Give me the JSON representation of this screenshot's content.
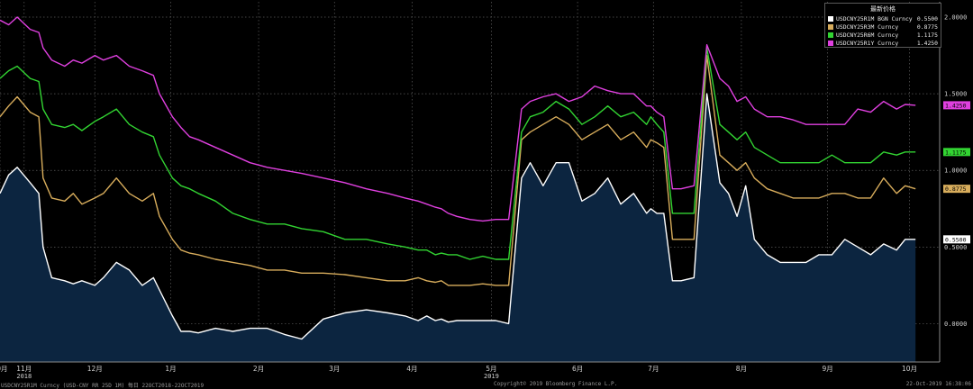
{
  "legend": {
    "title": "最新价格",
    "items": [
      {
        "label": "USDCNY25R1M BGN Curncy",
        "value": "0.5500",
        "color": "#ffffff"
      },
      {
        "label": "USDCNY25R3M Curncy",
        "value": "0.8775",
        "color": "#d8ad5c"
      },
      {
        "label": "USDCNY25R6M Curncy",
        "value": "1.1175",
        "color": "#32d432"
      },
      {
        "label": "USDCNY25R1Y Curncy",
        "value": "1.4250",
        "color": "#e040e0"
      }
    ]
  },
  "footer": {
    "left": "USDCNY25R1M Curncy (USD-CNY RR 25D 1M)  每日 22OCT2018-22OCT2019",
    "center": "Copyright© 2019 Bloomberg Finance L.P.",
    "right": "22-Oct-2019 16:38:06"
  },
  "chart_data": {
    "type": "line",
    "x_axis": {
      "ticks": [
        "10月",
        "11月",
        "12月",
        "1月",
        "2月",
        "3月",
        "4月",
        "5月",
        "6月",
        "7月",
        "8月",
        "9月",
        "10月"
      ],
      "tick_positions": [
        0,
        0.28,
        1.1,
        1.98,
        3.0,
        3.88,
        4.78,
        5.7,
        6.7,
        7.58,
        8.6,
        9.6,
        10.55
      ],
      "year_labels": [
        {
          "label": "2018",
          "at": 0.28
        },
        {
          "label": "2019",
          "at": 5.7
        }
      ],
      "range": [
        0,
        10.9
      ]
    },
    "y_axis": {
      "ticks": [
        "0.0000",
        "0.5000",
        "1.0000",
        "1.5000",
        "2.0000"
      ],
      "tick_values": [
        0,
        0.5,
        1.0,
        1.5,
        2.0
      ],
      "range": [
        -0.25,
        2.1
      ]
    },
    "grid": true,
    "legend_position": "top-right",
    "series": [
      {
        "name": "USDCNY25R1M BGN Curncy",
        "color": "#ffffff",
        "fill": "#0c2540",
        "last_value": "0.5500",
        "x": [
          0,
          0.1,
          0.2,
          0.35,
          0.45,
          0.5,
          0.6,
          0.75,
          0.85,
          0.95,
          1.1,
          1.2,
          1.35,
          1.5,
          1.65,
          1.78,
          1.85,
          2.0,
          2.1,
          2.2,
          2.3,
          2.5,
          2.7,
          2.9,
          3.1,
          3.3,
          3.5,
          3.75,
          4.0,
          4.25,
          4.5,
          4.7,
          4.85,
          4.95,
          5.05,
          5.12,
          5.2,
          5.3,
          5.45,
          5.6,
          5.75,
          5.9,
          6.05,
          6.15,
          6.3,
          6.45,
          6.6,
          6.75,
          6.9,
          7.05,
          7.2,
          7.35,
          7.5,
          7.55,
          7.62,
          7.7,
          7.8,
          7.9,
          8.05,
          8.2,
          8.35,
          8.45,
          8.55,
          8.65,
          8.75,
          8.9,
          9.05,
          9.2,
          9.35,
          9.5,
          9.65,
          9.8,
          9.95,
          10.1,
          10.25,
          10.4,
          10.5,
          10.62
        ],
        "y": [
          0.85,
          0.97,
          1.02,
          0.92,
          0.85,
          0.5,
          0.3,
          0.28,
          0.26,
          0.28,
          0.25,
          0.3,
          0.4,
          0.35,
          0.25,
          0.3,
          0.22,
          0.05,
          -0.05,
          -0.05,
          -0.06,
          -0.03,
          -0.05,
          -0.03,
          -0.03,
          -0.07,
          -0.1,
          0.03,
          0.07,
          0.09,
          0.07,
          0.05,
          0.02,
          0.05,
          0.02,
          0.03,
          0.01,
          0.02,
          0.02,
          0.02,
          0.02,
          0.0,
          0.95,
          1.05,
          0.9,
          1.05,
          1.05,
          0.8,
          0.85,
          0.95,
          0.78,
          0.85,
          0.72,
          0.75,
          0.72,
          0.72,
          0.28,
          0.28,
          0.3,
          1.5,
          0.92,
          0.85,
          0.7,
          0.9,
          0.55,
          0.45,
          0.4,
          0.4,
          0.4,
          0.45,
          0.45,
          0.55,
          0.5,
          0.45,
          0.52,
          0.48,
          0.55,
          0.55
        ]
      },
      {
        "name": "USDCNY25R3M Curncy",
        "color": "#d8ad5c",
        "last_value": "0.8775",
        "x": [
          0,
          0.1,
          0.2,
          0.35,
          0.45,
          0.5,
          0.6,
          0.75,
          0.85,
          0.95,
          1.1,
          1.2,
          1.35,
          1.5,
          1.65,
          1.78,
          1.85,
          2.0,
          2.1,
          2.2,
          2.3,
          2.5,
          2.7,
          2.9,
          3.1,
          3.3,
          3.5,
          3.75,
          4.0,
          4.25,
          4.5,
          4.7,
          4.85,
          4.95,
          5.05,
          5.12,
          5.2,
          5.3,
          5.45,
          5.6,
          5.75,
          5.9,
          6.05,
          6.15,
          6.3,
          6.45,
          6.6,
          6.75,
          6.9,
          7.05,
          7.2,
          7.35,
          7.5,
          7.55,
          7.62,
          7.7,
          7.8,
          7.9,
          8.05,
          8.2,
          8.35,
          8.45,
          8.55,
          8.65,
          8.75,
          8.9,
          9.05,
          9.2,
          9.35,
          9.5,
          9.65,
          9.8,
          9.95,
          10.1,
          10.25,
          10.4,
          10.5,
          10.62
        ],
        "y": [
          1.35,
          1.42,
          1.48,
          1.38,
          1.35,
          0.95,
          0.82,
          0.8,
          0.85,
          0.78,
          0.82,
          0.85,
          0.95,
          0.85,
          0.8,
          0.85,
          0.7,
          0.55,
          0.48,
          0.46,
          0.45,
          0.42,
          0.4,
          0.38,
          0.35,
          0.35,
          0.33,
          0.33,
          0.32,
          0.3,
          0.28,
          0.28,
          0.3,
          0.28,
          0.27,
          0.28,
          0.25,
          0.25,
          0.25,
          0.26,
          0.25,
          0.25,
          1.2,
          1.25,
          1.3,
          1.35,
          1.3,
          1.2,
          1.25,
          1.3,
          1.2,
          1.25,
          1.15,
          1.2,
          1.18,
          1.15,
          0.55,
          0.55,
          0.55,
          1.75,
          1.1,
          1.05,
          1.0,
          1.05,
          0.95,
          0.88,
          0.85,
          0.82,
          0.82,
          0.82,
          0.85,
          0.85,
          0.82,
          0.82,
          0.95,
          0.85,
          0.9,
          0.88
        ]
      },
      {
        "name": "USDCNY25R6M Curncy",
        "color": "#32d432",
        "last_value": "1.1175",
        "x": [
          0,
          0.1,
          0.2,
          0.35,
          0.45,
          0.5,
          0.6,
          0.75,
          0.85,
          0.95,
          1.1,
          1.2,
          1.35,
          1.5,
          1.65,
          1.78,
          1.85,
          2.0,
          2.1,
          2.2,
          2.3,
          2.5,
          2.7,
          2.9,
          3.1,
          3.3,
          3.5,
          3.75,
          4.0,
          4.25,
          4.5,
          4.7,
          4.85,
          4.95,
          5.05,
          5.12,
          5.2,
          5.3,
          5.45,
          5.6,
          5.75,
          5.9,
          6.05,
          6.15,
          6.3,
          6.45,
          6.6,
          6.75,
          6.9,
          7.05,
          7.2,
          7.35,
          7.5,
          7.55,
          7.62,
          7.7,
          7.8,
          7.9,
          8.05,
          8.2,
          8.35,
          8.45,
          8.55,
          8.65,
          8.75,
          8.9,
          9.05,
          9.2,
          9.35,
          9.5,
          9.65,
          9.8,
          9.95,
          10.1,
          10.25,
          10.4,
          10.5,
          10.62
        ],
        "y": [
          1.6,
          1.65,
          1.68,
          1.6,
          1.58,
          1.4,
          1.3,
          1.28,
          1.3,
          1.26,
          1.32,
          1.35,
          1.4,
          1.3,
          1.25,
          1.22,
          1.1,
          0.95,
          0.9,
          0.88,
          0.85,
          0.8,
          0.72,
          0.68,
          0.65,
          0.65,
          0.62,
          0.6,
          0.55,
          0.55,
          0.52,
          0.5,
          0.48,
          0.48,
          0.45,
          0.46,
          0.45,
          0.45,
          0.42,
          0.44,
          0.42,
          0.42,
          1.25,
          1.35,
          1.38,
          1.45,
          1.4,
          1.3,
          1.35,
          1.42,
          1.35,
          1.38,
          1.3,
          1.35,
          1.3,
          1.25,
          0.72,
          0.72,
          0.72,
          1.8,
          1.3,
          1.25,
          1.2,
          1.25,
          1.15,
          1.1,
          1.05,
          1.05,
          1.05,
          1.05,
          1.1,
          1.05,
          1.05,
          1.05,
          1.12,
          1.1,
          1.12,
          1.12
        ]
      },
      {
        "name": "USDCNY25R1Y Curncy",
        "color": "#e040e0",
        "last_value": "1.4250",
        "x": [
          0,
          0.1,
          0.2,
          0.35,
          0.45,
          0.5,
          0.6,
          0.75,
          0.85,
          0.95,
          1.1,
          1.2,
          1.35,
          1.5,
          1.65,
          1.78,
          1.85,
          2.0,
          2.1,
          2.2,
          2.3,
          2.5,
          2.7,
          2.9,
          3.1,
          3.3,
          3.5,
          3.75,
          4.0,
          4.25,
          4.5,
          4.7,
          4.85,
          4.95,
          5.05,
          5.12,
          5.2,
          5.3,
          5.45,
          5.6,
          5.75,
          5.9,
          6.05,
          6.15,
          6.3,
          6.45,
          6.6,
          6.75,
          6.9,
          7.05,
          7.2,
          7.35,
          7.5,
          7.55,
          7.62,
          7.7,
          7.8,
          7.9,
          8.05,
          8.2,
          8.35,
          8.45,
          8.55,
          8.65,
          8.75,
          8.9,
          9.05,
          9.2,
          9.35,
          9.5,
          9.65,
          9.8,
          9.95,
          10.1,
          10.25,
          10.4,
          10.5,
          10.62
        ],
        "y": [
          1.98,
          1.95,
          2.0,
          1.92,
          1.9,
          1.8,
          1.72,
          1.68,
          1.72,
          1.7,
          1.75,
          1.72,
          1.75,
          1.68,
          1.65,
          1.62,
          1.5,
          1.35,
          1.28,
          1.22,
          1.2,
          1.15,
          1.1,
          1.05,
          1.02,
          1.0,
          0.98,
          0.95,
          0.92,
          0.88,
          0.85,
          0.82,
          0.8,
          0.78,
          0.76,
          0.75,
          0.72,
          0.7,
          0.68,
          0.67,
          0.68,
          0.68,
          1.4,
          1.45,
          1.48,
          1.5,
          1.45,
          1.48,
          1.55,
          1.52,
          1.5,
          1.5,
          1.42,
          1.42,
          1.38,
          1.35,
          0.88,
          0.88,
          0.9,
          1.82,
          1.6,
          1.55,
          1.45,
          1.48,
          1.4,
          1.35,
          1.35,
          1.33,
          1.3,
          1.3,
          1.3,
          1.3,
          1.4,
          1.38,
          1.45,
          1.4,
          1.43,
          1.425
        ]
      }
    ]
  }
}
